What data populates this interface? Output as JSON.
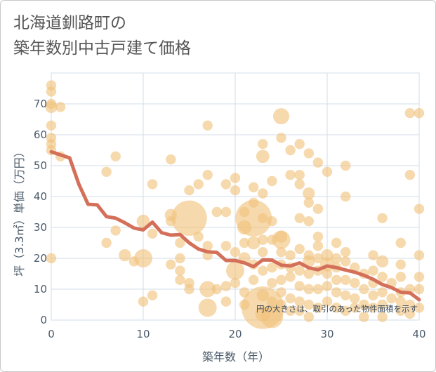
{
  "title": {
    "line1": "北海道釧路町の",
    "line2": "築年数別中古戸建て価格"
  },
  "chart_data": {
    "type": "scatter",
    "title": "北海道釧路町の築年数別中古戸建て価格",
    "xlabel": "築年数（年）",
    "ylabel": "坪（3.3㎡）単価（万円）",
    "xlim": [
      0,
      40
    ],
    "ylim": [
      0,
      80
    ],
    "xticks": [
      0,
      10,
      20,
      30,
      40
    ],
    "yticks": [
      0,
      10,
      20,
      30,
      40,
      50,
      60,
      70
    ],
    "grid": true,
    "annotation": "円の大きさは、取引のあった物件面積を示す",
    "colors": {
      "bubble": "#f0c27b",
      "trend": "#d4705a",
      "grid": "#d2dde8",
      "axis_text": "#4a5a6a"
    },
    "series": [
      {
        "kind": "bubble",
        "points": [
          [
            0,
            76,
            1
          ],
          [
            0,
            74,
            1
          ],
          [
            0,
            70,
            1
          ],
          [
            0,
            69,
            1.2
          ],
          [
            0,
            63,
            1
          ],
          [
            0,
            59,
            1
          ],
          [
            0,
            57,
            1
          ],
          [
            0,
            55,
            1
          ],
          [
            0,
            20,
            1
          ],
          [
            1,
            69,
            1
          ],
          [
            1,
            53,
            1
          ],
          [
            6,
            48,
            1
          ],
          [
            6,
            25,
            1
          ],
          [
            7,
            53,
            1
          ],
          [
            7,
            29,
            1
          ],
          [
            8,
            21,
            1.2
          ],
          [
            9,
            19,
            1
          ],
          [
            10,
            32,
            1.3
          ],
          [
            10,
            20,
            1.8
          ],
          [
            10,
            6,
            1
          ],
          [
            11,
            44,
            1
          ],
          [
            11,
            28,
            1
          ],
          [
            11,
            8,
            1
          ],
          [
            13,
            52,
            1
          ],
          [
            13,
            34,
            1.2
          ],
          [
            13,
            32,
            1
          ],
          [
            13,
            18,
            1
          ],
          [
            14,
            25,
            1
          ],
          [
            14,
            20,
            1
          ],
          [
            14,
            16,
            1
          ],
          [
            14,
            13,
            1
          ],
          [
            15,
            42,
            1
          ],
          [
            15,
            33,
            3.5
          ],
          [
            15,
            12,
            1
          ],
          [
            15,
            10,
            1
          ],
          [
            16,
            44,
            1
          ],
          [
            16,
            27,
            1
          ],
          [
            17,
            63,
            1
          ],
          [
            17,
            47,
            1
          ],
          [
            17,
            24,
            1
          ],
          [
            17,
            21,
            1
          ],
          [
            17,
            10,
            1.6
          ],
          [
            17,
            4,
            1.8
          ],
          [
            18,
            10,
            1
          ],
          [
            18,
            35,
            1
          ],
          [
            19,
            44,
            1
          ],
          [
            19,
            35,
            1
          ],
          [
            19,
            24,
            1
          ],
          [
            19,
            11,
            1
          ],
          [
            19,
            6,
            1
          ],
          [
            20,
            46,
            1
          ],
          [
            20,
            42,
            1
          ],
          [
            20,
            22,
            1
          ],
          [
            20,
            16,
            1.8
          ],
          [
            20,
            12,
            1
          ],
          [
            21,
            35,
            1
          ],
          [
            21,
            30,
            1.4
          ],
          [
            21,
            25,
            1
          ],
          [
            21,
            20,
            1.2
          ],
          [
            21,
            9,
            1
          ],
          [
            21,
            5,
            1
          ],
          [
            22,
            43,
            1
          ],
          [
            22,
            38,
            1
          ],
          [
            22,
            33,
            3.6
          ],
          [
            22,
            25,
            1.3
          ],
          [
            22,
            18,
            1
          ],
          [
            22,
            13,
            1
          ],
          [
            23,
            57,
            1
          ],
          [
            23,
            53,
            1.3
          ],
          [
            23,
            41,
            1
          ],
          [
            23,
            33,
            1
          ],
          [
            23,
            26,
            1
          ],
          [
            23,
            22,
            1
          ],
          [
            23,
            16,
            1
          ],
          [
            23,
            8,
            1.2
          ],
          [
            23,
            4,
            4.2
          ],
          [
            23,
            2,
            1.5
          ],
          [
            24,
            45,
            1
          ],
          [
            24,
            32,
            1
          ],
          [
            24,
            26,
            1
          ],
          [
            24,
            17,
            1
          ],
          [
            24,
            12,
            1
          ],
          [
            24,
            6,
            1
          ],
          [
            24,
            1,
            2.2
          ],
          [
            25,
            66,
            1.6
          ],
          [
            25,
            59,
            1
          ],
          [
            25,
            27,
            1.2
          ],
          [
            25,
            26,
            1.8
          ],
          [
            25,
            22,
            1
          ],
          [
            25,
            18,
            1
          ],
          [
            25,
            13,
            1
          ],
          [
            25,
            9,
            1
          ],
          [
            25,
            5,
            1
          ],
          [
            26,
            55,
            1
          ],
          [
            26,
            47,
            1
          ],
          [
            26,
            21,
            1
          ],
          [
            26,
            17,
            1
          ],
          [
            26,
            14,
            1
          ],
          [
            26,
            7,
            1
          ],
          [
            26,
            3,
            1
          ],
          [
            27,
            57,
            1
          ],
          [
            27,
            47,
            1
          ],
          [
            27,
            44,
            1
          ],
          [
            27,
            33,
            1
          ],
          [
            27,
            23,
            1
          ],
          [
            27,
            16,
            1
          ],
          [
            27,
            11,
            1
          ],
          [
            27,
            6,
            1
          ],
          [
            27,
            3,
            1
          ],
          [
            28,
            54,
            1
          ],
          [
            28,
            41,
            1.2
          ],
          [
            28,
            38,
            1
          ],
          [
            28,
            32,
            1
          ],
          [
            28,
            21,
            1
          ],
          [
            28,
            19,
            1.2
          ],
          [
            28,
            15,
            1
          ],
          [
            28,
            10,
            1
          ],
          [
            28,
            5,
            1
          ],
          [
            28,
            1,
            1
          ],
          [
            29,
            51,
            1
          ],
          [
            29,
            36,
            1
          ],
          [
            29,
            27,
            1
          ],
          [
            29,
            24,
            1
          ],
          [
            29,
            20,
            1
          ],
          [
            29,
            16,
            1
          ],
          [
            29,
            10,
            1
          ],
          [
            29,
            4,
            1
          ],
          [
            30,
            48,
            1
          ],
          [
            30,
            21,
            1.2
          ],
          [
            30,
            18,
            1.4
          ],
          [
            30,
            15,
            1
          ],
          [
            30,
            11,
            1
          ],
          [
            30,
            6,
            1
          ],
          [
            31,
            25,
            1
          ],
          [
            31,
            20,
            1
          ],
          [
            31,
            17,
            1
          ],
          [
            31,
            13,
            1
          ],
          [
            31,
            9,
            1
          ],
          [
            31,
            4,
            1
          ],
          [
            32,
            50,
            1
          ],
          [
            32,
            40,
            1
          ],
          [
            32,
            22,
            1
          ],
          [
            32,
            19,
            1
          ],
          [
            32,
            13,
            1
          ],
          [
            32,
            8,
            1
          ],
          [
            32,
            3,
            1
          ],
          [
            33,
            17,
            1
          ],
          [
            33,
            12,
            1
          ],
          [
            33,
            7,
            1
          ],
          [
            33,
            4,
            1
          ],
          [
            34,
            15,
            1
          ],
          [
            34,
            10,
            1
          ],
          [
            34,
            5,
            1
          ],
          [
            34,
            1,
            1
          ],
          [
            35,
            21,
            1
          ],
          [
            35,
            16,
            1
          ],
          [
            35,
            12,
            1
          ],
          [
            35,
            8,
            1
          ],
          [
            35,
            4,
            1
          ],
          [
            36,
            33,
            1
          ],
          [
            36,
            19,
            1.2
          ],
          [
            36,
            14,
            1
          ],
          [
            36,
            9,
            1
          ],
          [
            36,
            5,
            1
          ],
          [
            36,
            1,
            1
          ],
          [
            37,
            12,
            1
          ],
          [
            37,
            7,
            1
          ],
          [
            38,
            25,
            1
          ],
          [
            38,
            18,
            1
          ],
          [
            38,
            14,
            1
          ],
          [
            38,
            9,
            1
          ],
          [
            38,
            6,
            1
          ],
          [
            38,
            3,
            1
          ],
          [
            39,
            67,
            1
          ],
          [
            39,
            47,
            1
          ],
          [
            39,
            10,
            1
          ],
          [
            39,
            5,
            1
          ],
          [
            39,
            2,
            1
          ],
          [
            40,
            67,
            1
          ],
          [
            40,
            36,
            1
          ],
          [
            40,
            21,
            1
          ],
          [
            40,
            14,
            1
          ],
          [
            40,
            10,
            1
          ],
          [
            40,
            4,
            1
          ]
        ]
      },
      {
        "kind": "trend",
        "x": [
          0,
          1,
          2,
          3,
          4,
          5,
          6,
          7,
          8,
          9,
          10,
          11,
          12,
          13,
          14,
          15,
          16,
          17,
          18,
          19,
          20,
          21,
          22,
          23,
          24,
          25,
          26,
          27,
          28,
          29,
          30,
          31,
          32,
          33,
          34,
          35,
          36,
          37,
          38,
          39,
          40
        ],
        "y": [
          54.5,
          53.5,
          52.5,
          44,
          37.5,
          37.3,
          33.5,
          33,
          31.5,
          29.8,
          29.2,
          31.7,
          28.3,
          27.5,
          27.7,
          25.0,
          23.0,
          22.1,
          21.9,
          19.3,
          19.3,
          18.5,
          17.3,
          19.5,
          19.4,
          17.8,
          17.5,
          18.5,
          16.9,
          16.3,
          17.5,
          17.0,
          16.2,
          15.5,
          14.5,
          13.2,
          11.5,
          10.5,
          9.0,
          8.8,
          6.6
        ]
      }
    ]
  }
}
